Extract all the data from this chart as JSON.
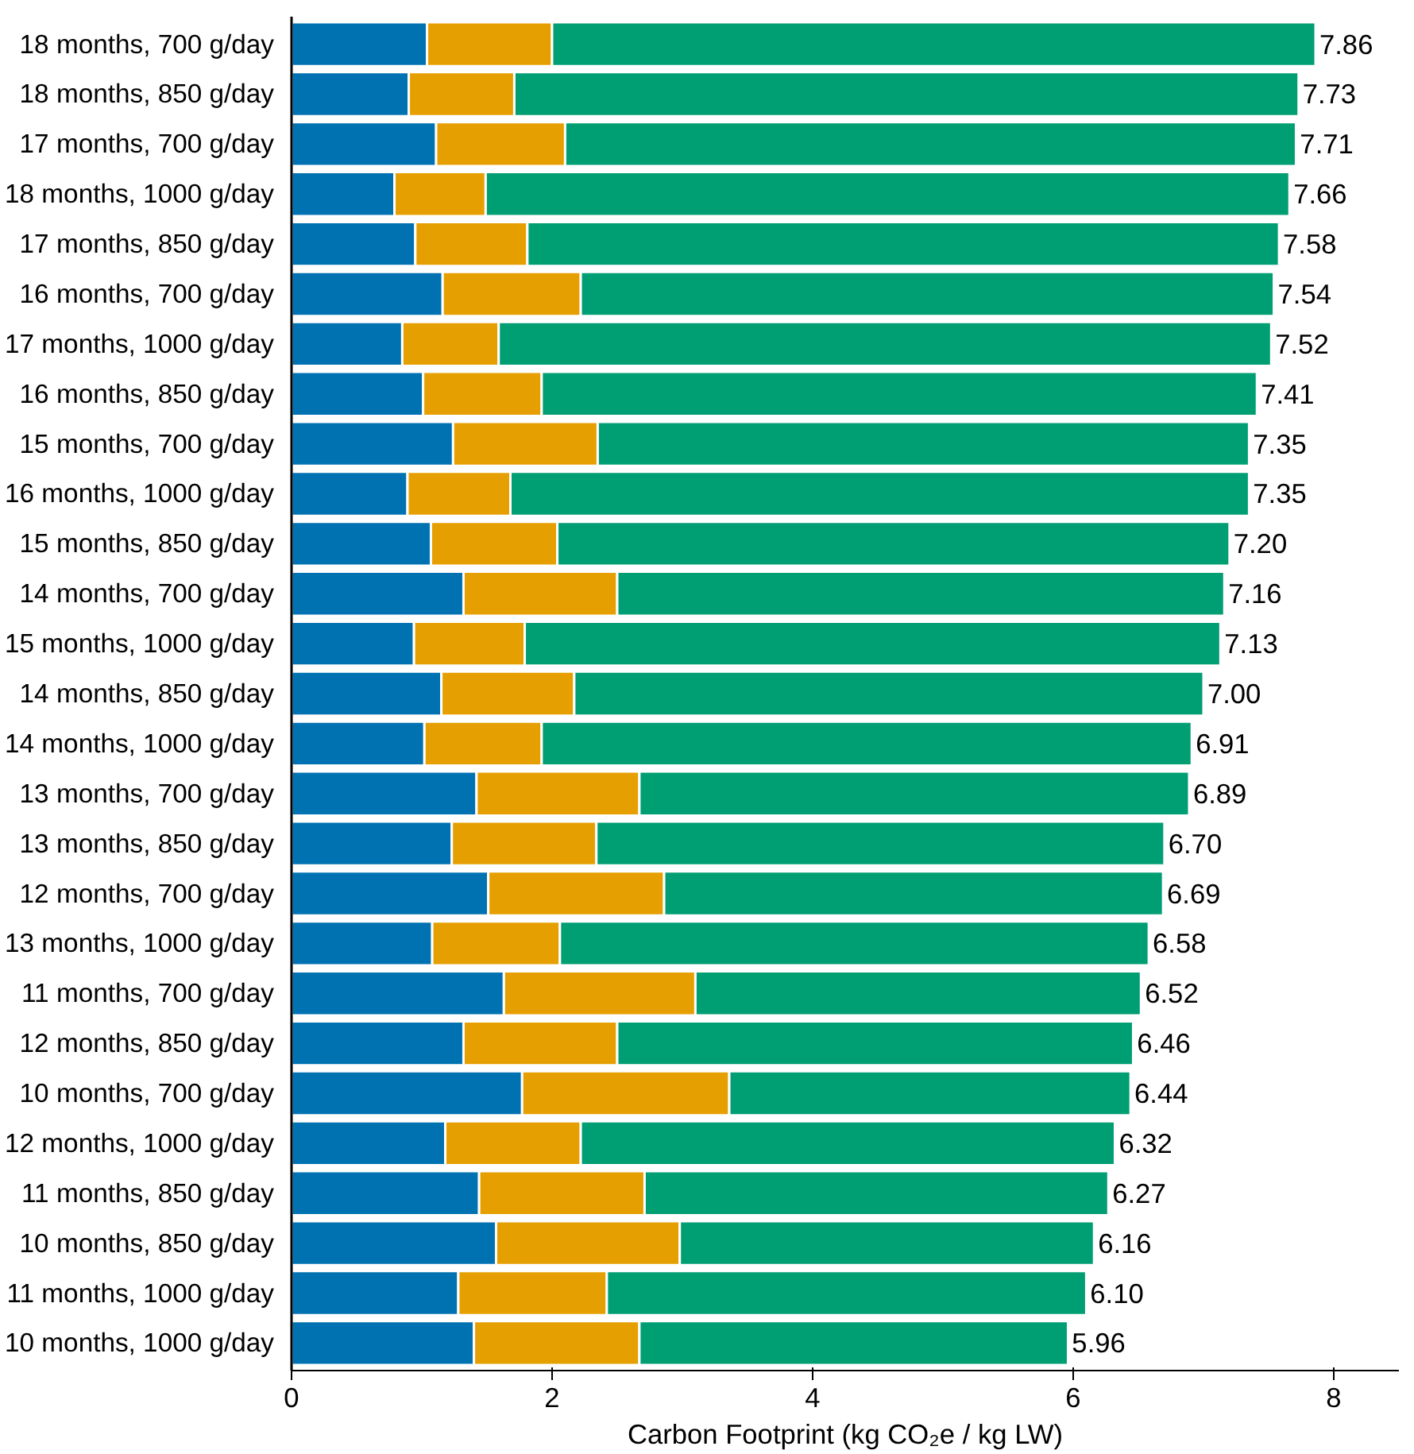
{
  "chart_data": {
    "type": "bar",
    "orientation": "horizontal",
    "stacked": true,
    "xlabel": "Carbon Footprint (kg CO₂e / kg LW)",
    "categories": [
      "18 months, 700 g/day",
      "18 months, 850 g/day",
      "17 months, 700 g/day",
      "18 months, 1000 g/day",
      "17 months, 850 g/day",
      "16 months, 700 g/day",
      "17 months, 1000 g/day",
      "16 months, 850 g/day",
      "15 months, 700 g/day",
      "16 months, 1000 g/day",
      "15 months, 850 g/day",
      "14 months, 700 g/day",
      "15 months, 1000 g/day",
      "14 months, 850 g/day",
      "14 months, 1000 g/day",
      "13 months, 700 g/day",
      "13 months, 850 g/day",
      "12 months, 700 g/day",
      "13 months, 1000 g/day",
      "11 months, 700 g/day",
      "12 months, 850 g/day",
      "10 months, 700 g/day",
      "12 months, 1000 g/day",
      "11 months, 850 g/day",
      "10 months, 850 g/day",
      "11 months, 1000 g/day",
      "10 months, 1000 g/day"
    ],
    "series": [
      {
        "color": "#0072b2",
        "values": [
          1.04,
          0.9,
          1.11,
          0.79,
          0.95,
          1.16,
          0.85,
          1.01,
          1.24,
          0.89,
          1.07,
          1.32,
          0.94,
          1.15,
          1.02,
          1.42,
          1.23,
          1.51,
          1.08,
          1.63,
          1.32,
          1.77,
          1.18,
          1.44,
          1.57,
          1.28,
          1.4
        ]
      },
      {
        "color": "#e69f00",
        "values": [
          0.96,
          0.81,
          0.99,
          0.7,
          0.86,
          1.06,
          0.74,
          0.91,
          1.11,
          0.79,
          0.97,
          1.18,
          0.85,
          1.02,
          0.9,
          1.25,
          1.11,
          1.35,
          0.98,
          1.47,
          1.18,
          1.59,
          1.04,
          1.27,
          1.41,
          1.14,
          1.27
        ]
      },
      {
        "color": "#009e73",
        "values": [
          5.86,
          6.02,
          5.61,
          6.17,
          5.77,
          5.32,
          5.93,
          5.49,
          5.0,
          5.67,
          5.16,
          4.66,
          5.34,
          4.83,
          4.99,
          4.22,
          4.36,
          3.83,
          4.52,
          3.42,
          3.96,
          3.08,
          4.1,
          3.56,
          3.18,
          3.68,
          3.29
        ]
      }
    ],
    "totals": [
      "7.86",
      "7.73",
      "7.71",
      "7.66",
      "7.58",
      "7.54",
      "7.52",
      "7.41",
      "7.35",
      "7.35",
      "7.20",
      "7.16",
      "7.13",
      "7.00",
      "6.91",
      "6.89",
      "6.70",
      "6.69",
      "6.58",
      "6.52",
      "6.46",
      "6.44",
      "6.32",
      "6.27",
      "6.16",
      "6.10",
      "5.96"
    ],
    "xlim": [
      0,
      8.5
    ],
    "xticks": [
      0,
      2,
      4,
      6,
      8
    ],
    "grid": false
  }
}
